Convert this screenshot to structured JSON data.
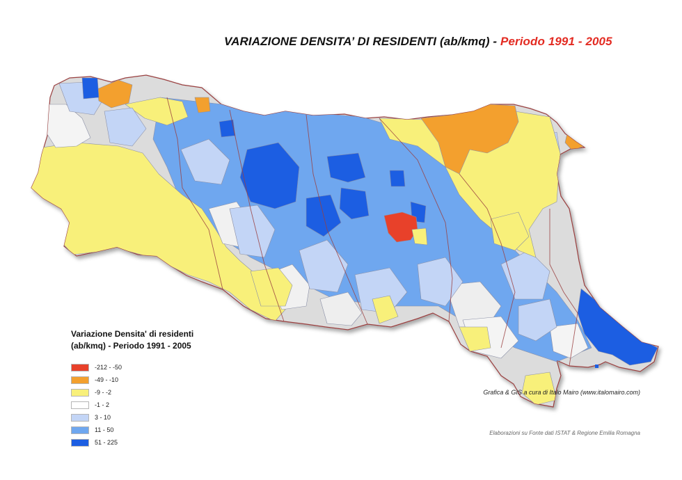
{
  "title": {
    "main": "VARIAZIONE DENSITA’ DI RESIDENTI (ab/kmq) -",
    "period": "Periodo 1991 - 2005"
  },
  "legend": {
    "title_line1": "Variazione Densita' di residenti",
    "title_line2": "(ab/kmq) - Periodo 1991 - 2005",
    "items": [
      {
        "label": "-212 - -50",
        "color": "#e8412a"
      },
      {
        "label": "-49 - -10",
        "color": "#f3a02e"
      },
      {
        "label": "-9 - -2",
        "color": "#f8f07a"
      },
      {
        "label": "-1 - 2",
        "color": "#ffffff"
      },
      {
        "label": "3 - 10",
        "color": "#c3d5f6"
      },
      {
        "label": "11 - 50",
        "color": "#6fa7ef"
      },
      {
        "label": "51 - 225",
        "color": "#1c5ee2"
      }
    ]
  },
  "credit": "Grafica & GIS a cura di Italo Mairo (www.italomairo.com)",
  "source": "Elaborazioni su Fonte dati ISTAT & Regione Emilia Romagna",
  "map": {
    "region": "Emilia Romagna",
    "terrain_color": "#dcdcdc",
    "border_color": "#9a4040"
  }
}
